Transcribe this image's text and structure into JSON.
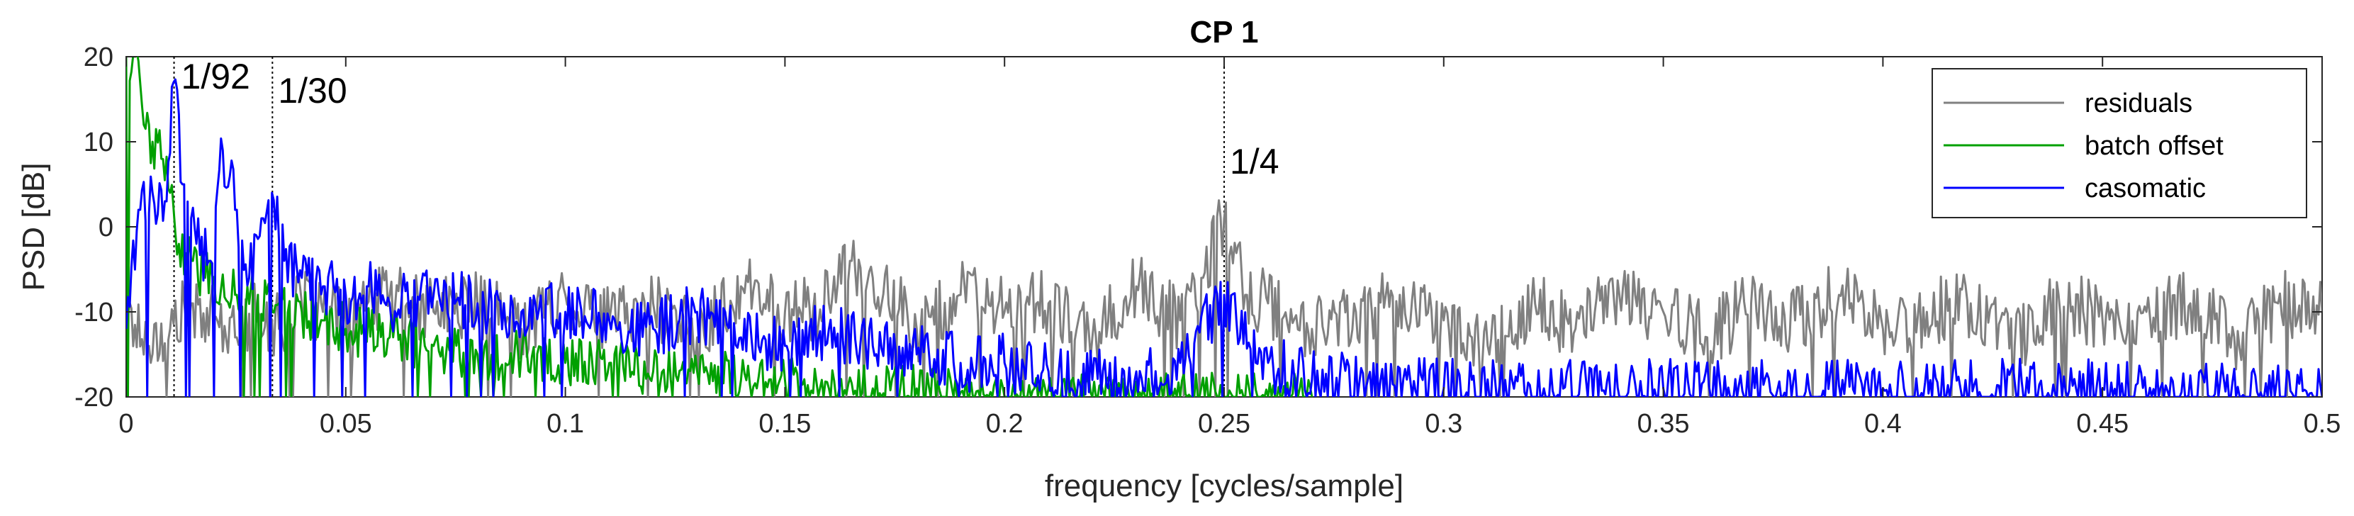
{
  "chart_data": {
    "type": "line",
    "title": "CP 1",
    "xlabel": "frequency [cycles/sample]",
    "ylabel": "PSD [dB]",
    "xlim": [
      0,
      0.5
    ],
    "ylim": [
      -20,
      20
    ],
    "xticks": [
      0,
      0.05,
      0.1,
      0.15,
      0.2,
      0.25,
      0.3,
      0.35,
      0.4,
      0.45,
      0.5
    ],
    "xtick_labels": [
      "0",
      "0.05",
      "0.1",
      "0.15",
      "0.2",
      "0.25",
      "0.3",
      "0.35",
      "0.4",
      "0.45",
      "0.5"
    ],
    "yticks": [
      -20,
      -10,
      0,
      10,
      20
    ],
    "ytick_labels": [
      "-20",
      "-10",
      "0",
      "10",
      "20"
    ],
    "grid": false,
    "legend_position": "top-right",
    "annotations": [
      {
        "text": "1/92",
        "x": 0.0109
      },
      {
        "text": "1/30",
        "x": 0.0333
      },
      {
        "text": "1/4",
        "x": 0.25
      }
    ],
    "series": [
      {
        "name": "residuals",
        "color": "#808080",
        "x": [
          0,
          0.005,
          0.01,
          0.015,
          0.02,
          0.025,
          0.03,
          0.035,
          0.04,
          0.05,
          0.06,
          0.07,
          0.08,
          0.09,
          0.1,
          0.11,
          0.12,
          0.13,
          0.14,
          0.15,
          0.16,
          0.165,
          0.17,
          0.18,
          0.19,
          0.2,
          0.21,
          0.22,
          0.23,
          0.24,
          0.245,
          0.25,
          0.255,
          0.26,
          0.27,
          0.28,
          0.29,
          0.3,
          0.31,
          0.32,
          0.33,
          0.34,
          0.35,
          0.36,
          0.37,
          0.38,
          0.39,
          0.4,
          0.41,
          0.42,
          0.43,
          0.44,
          0.45,
          0.46,
          0.47,
          0.48,
          0.49,
          0.5
        ],
        "y": [
          -10,
          -14,
          -12,
          -9,
          -11,
          -13,
          -10,
          -12,
          -9,
          -11,
          -8,
          -10,
          -9,
          -12,
          -8,
          -11,
          -9,
          -13,
          -7,
          -10,
          -9,
          -4,
          -6,
          -12,
          -8,
          -10,
          -9,
          -13,
          -7,
          -11,
          -6,
          1,
          -8,
          -9,
          -12,
          -10,
          -8,
          -11,
          -14,
          -9,
          -12,
          -8,
          -10,
          -13,
          -9,
          -11,
          -8,
          -12,
          -10,
          -9,
          -14,
          -8,
          -11,
          -10,
          -9,
          -13,
          -9,
          -10
        ]
      },
      {
        "name": "batch offset",
        "color": "#00a000",
        "x": [
          0,
          0.002,
          0.004,
          0.006,
          0.008,
          0.01,
          0.012,
          0.015,
          0.018,
          0.02,
          0.025,
          0.03,
          0.035,
          0.04,
          0.045,
          0.05,
          0.06,
          0.07,
          0.08,
          0.09,
          0.1,
          0.11,
          0.12,
          0.13,
          0.14,
          0.15,
          0.16,
          0.17,
          0.18,
          0.2,
          0.22,
          0.25,
          0.27
        ],
        "y": [
          20,
          20,
          12,
          10,
          8,
          4,
          -2,
          -4,
          -6,
          -6,
          -8,
          -8,
          -9,
          -10,
          -11,
          -12,
          -13,
          -14,
          -15,
          -15,
          -16,
          -16,
          -17,
          -17,
          -18,
          -18,
          -19,
          -19,
          -19,
          -20,
          -20,
          -20,
          -20
        ]
      },
      {
        "name": "casomatic",
        "color": "#0000ff",
        "x": [
          0,
          0.003,
          0.006,
          0.009,
          0.0109,
          0.013,
          0.016,
          0.019,
          0.022,
          0.025,
          0.028,
          0.031,
          0.0333,
          0.036,
          0.04,
          0.045,
          0.05,
          0.055,
          0.06,
          0.07,
          0.08,
          0.09,
          0.1,
          0.11,
          0.12,
          0.13,
          0.14,
          0.15,
          0.16,
          0.17,
          0.18,
          0.19,
          0.2,
          0.21,
          0.22,
          0.23,
          0.24,
          0.25,
          0.26,
          0.27,
          0.3,
          0.35,
          0.4,
          0.45,
          0.5
        ],
        "y": [
          -12,
          2,
          4,
          3,
          17,
          5,
          -2,
          -4,
          9,
          2,
          -6,
          1,
          4,
          -4,
          -6,
          -7,
          -8,
          -7,
          -9,
          -8,
          -9,
          -10,
          -10,
          -11,
          -12,
          -10,
          -13,
          -14,
          -12,
          -14,
          -15,
          -16,
          -16,
          -17,
          -18,
          -17,
          -16,
          -8,
          -16,
          -18,
          -19,
          -19,
          -19,
          -19,
          -20
        ]
      }
    ]
  }
}
